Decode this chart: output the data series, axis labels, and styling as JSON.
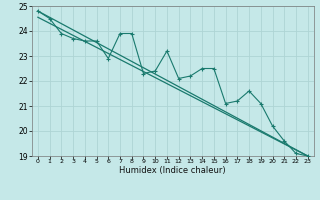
{
  "title": "",
  "xlabel": "Humidex (Indice chaleur)",
  "ylabel": "",
  "background_color": "#c5e8e8",
  "grid_color": "#aed4d4",
  "line_color": "#1a7a6e",
  "xlim": [
    -0.5,
    23.5
  ],
  "ylim": [
    19,
    25
  ],
  "x_ticks": [
    0,
    1,
    2,
    3,
    4,
    5,
    6,
    7,
    8,
    9,
    10,
    11,
    12,
    13,
    14,
    15,
    16,
    17,
    18,
    19,
    20,
    21,
    22,
    23
  ],
  "y_ticks": [
    19,
    20,
    21,
    22,
    23,
    24,
    25
  ],
  "data_line": {
    "x": [
      0,
      1,
      2,
      3,
      4,
      5,
      6,
      7,
      8,
      9,
      10,
      11,
      12,
      13,
      14,
      15,
      16,
      17,
      18,
      19,
      20,
      21,
      22,
      23
    ],
    "y": [
      24.8,
      24.5,
      23.9,
      23.7,
      23.6,
      23.6,
      22.9,
      23.9,
      23.9,
      22.3,
      22.4,
      23.2,
      22.1,
      22.2,
      22.5,
      22.5,
      21.1,
      21.2,
      21.6,
      21.1,
      20.2,
      19.6,
      19.1,
      19.0
    ]
  },
  "trend_line1": {
    "x": [
      0,
      23
    ],
    "y": [
      24.8,
      19.0
    ]
  },
  "trend_line2": {
    "x": [
      0,
      23
    ],
    "y": [
      24.55,
      19.0
    ]
  }
}
